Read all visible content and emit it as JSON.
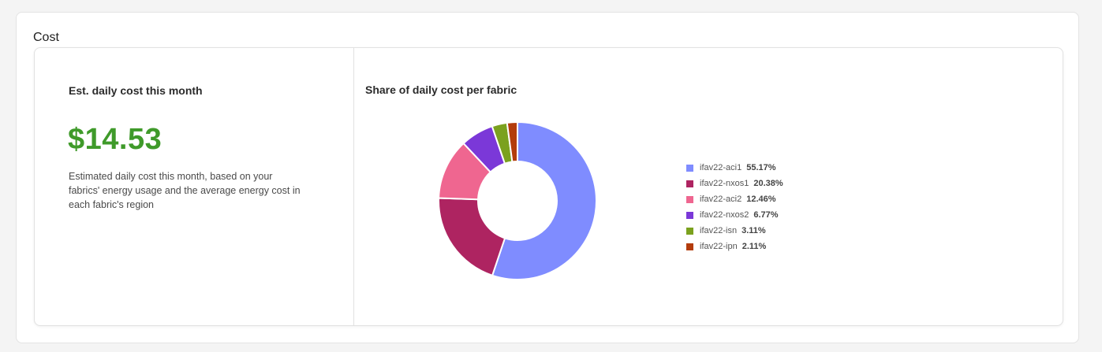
{
  "section": {
    "title": "Cost"
  },
  "left_panel": {
    "heading": "Est. daily cost this month",
    "value": "$14.53",
    "value_color": "#3f9a2a",
    "description": "Estimated daily cost this month, based on your fabrics' energy usage and the average energy cost in each fabric's region"
  },
  "right_panel": {
    "heading": "Share of daily cost per fabric"
  },
  "chart_data": {
    "type": "pie",
    "variant": "donut",
    "title": "Share of daily cost per fabric",
    "legend_position": "right",
    "slices": [
      {
        "label": "ifav22-aci1",
        "value": 55.17,
        "pct_label": "55.17%",
        "color": "#7f8cff"
      },
      {
        "label": "ifav22-nxos1",
        "value": 20.38,
        "pct_label": "20.38%",
        "color": "#ae2461"
      },
      {
        "label": "ifav22-aci2",
        "value": 12.46,
        "pct_label": "12.46%",
        "color": "#ef6690"
      },
      {
        "label": "ifav22-nxos2",
        "value": 6.77,
        "pct_label": "6.77%",
        "color": "#7b38d8"
      },
      {
        "label": "ifav22-isn",
        "value": 3.11,
        "pct_label": "3.11%",
        "color": "#7ba11e"
      },
      {
        "label": "ifav22-ipn",
        "value": 2.11,
        "pct_label": "2.11%",
        "color": "#b33c0c"
      }
    ]
  }
}
